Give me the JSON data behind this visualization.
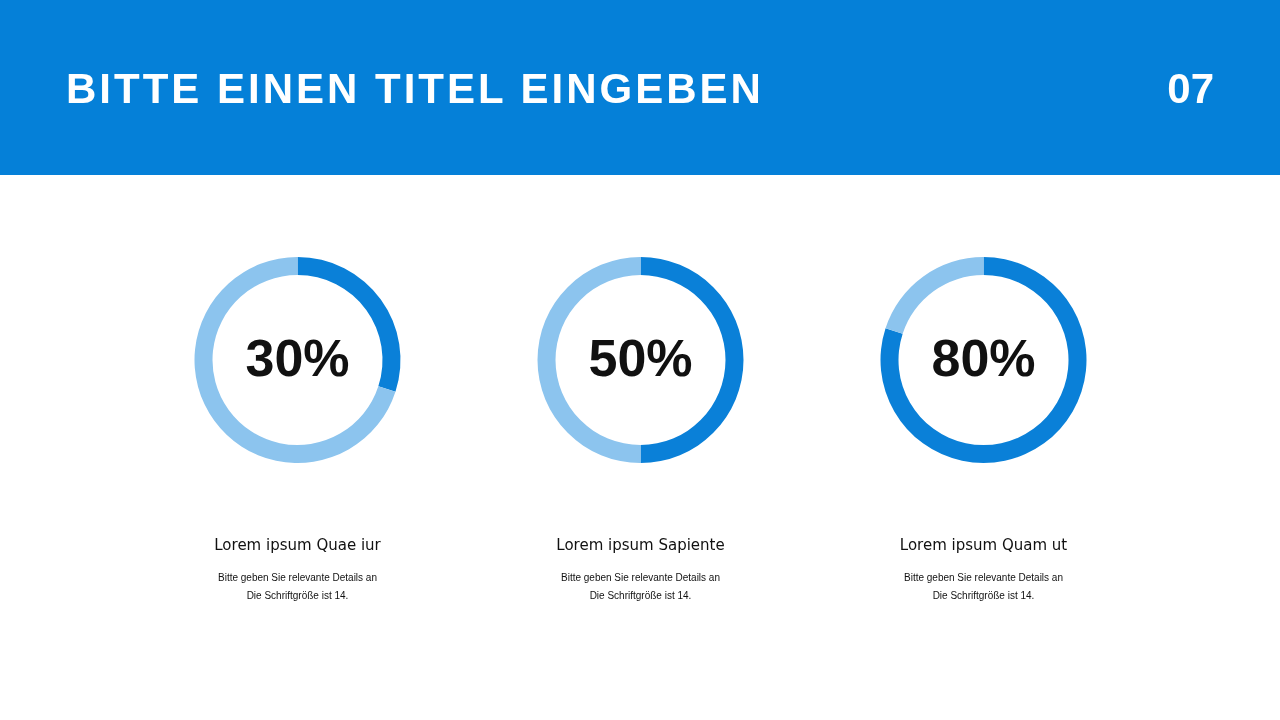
{
  "chart_data": [
    {
      "type": "other",
      "title": "BITTE EINEN TITEL EINGEBEN",
      "annotations": [
        "07"
      ]
    },
    {
      "type": "donut",
      "title": "Lorem ipsum Quae iur",
      "categories": [
        null,
        null
      ],
      "values": [
        30,
        70
      ],
      "colors": [
        "#0a80d8",
        "#8cc4ee"
      ],
      "value_labels": [
        "30%",
        null
      ],
      "annotations": [
        "Bitte geben Sie relevante Details an",
        "Die Schriftgröße ist 14."
      ]
    },
    {
      "type": "donut",
      "title": "Lorem ipsum Sapiente",
      "categories": [
        null,
        null
      ],
      "values": [
        50,
        50
      ],
      "colors": [
        "#0a80d8",
        "#8cc4ee"
      ],
      "value_labels": [
        "50%",
        null
      ],
      "annotations": [
        "Bitte geben Sie relevante Details an",
        "Die Schriftgröße ist 14."
      ]
    },
    {
      "type": "donut",
      "title": "Lorem ipsum Quam ut",
      "categories": [
        null,
        null
      ],
      "values": [
        80,
        20
      ],
      "colors": [
        "#0a80d8",
        "#8cc4ee"
      ],
      "value_labels": [
        "80%",
        null
      ],
      "annotations": [
        "Bitte geben Sie relevante Details an",
        "Die Schriftgröße ist 14."
      ]
    }
  ]
}
